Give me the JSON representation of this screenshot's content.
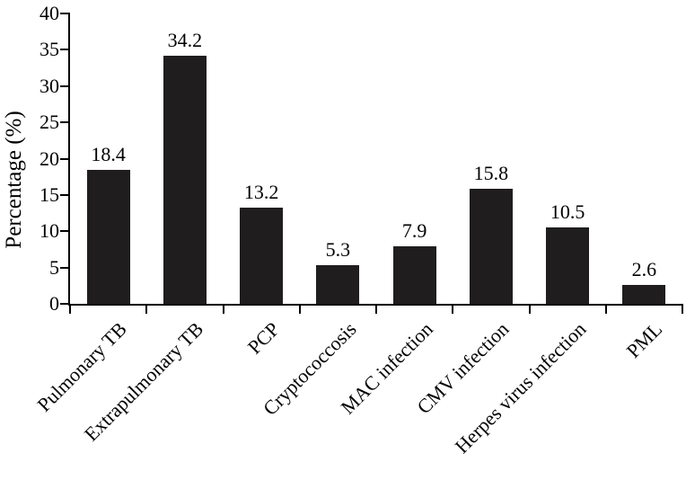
{
  "figure": {
    "background": "#ffffff",
    "text_color": "#000000"
  },
  "chart_data": {
    "type": "bar",
    "title": "",
    "xlabel": "",
    "ylabel": "Percentage (%)",
    "categories": [
      "Pulmonary TB",
      "Extrapulmonary TB",
      "PCP",
      "Cryptococcosis",
      "MAC infection",
      "CMV infection",
      "Herpes virus infection",
      "PML"
    ],
    "values": [
      18.4,
      34.2,
      13.2,
      5.3,
      7.9,
      15.8,
      10.5,
      2.6
    ],
    "value_labels": [
      "18.4",
      "34.2",
      "13.2",
      "5.3",
      "7.9",
      "15.8",
      "10.5",
      "2.6"
    ],
    "ylim": [
      0,
      40
    ],
    "yticks": [
      0,
      5,
      10,
      15,
      20,
      25,
      30,
      35,
      40
    ],
    "xtick_label_rotation_deg": 45,
    "grid": false,
    "legend": "none",
    "bar_color": "#1f1d1d",
    "axis_color": "#000000"
  }
}
